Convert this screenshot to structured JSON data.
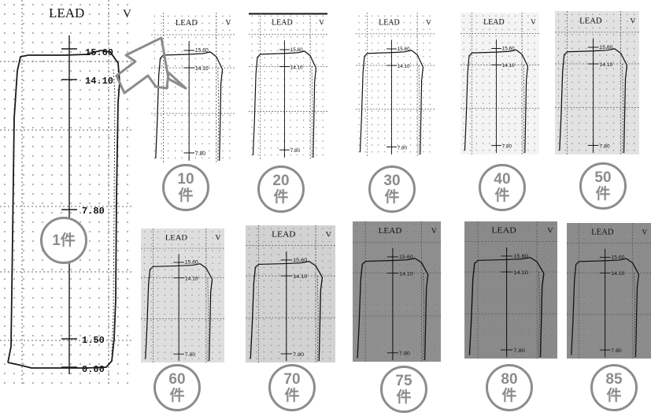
{
  "lead_label": "LEAD",
  "lead_suffix": "V",
  "ticks": {
    "top": "15.60",
    "upper": "14.10",
    "middle": "7.80",
    "low": "1.50",
    "bottom": "0.00"
  },
  "panels": [
    {
      "id": "1",
      "badge_number": "1",
      "badge_unit": "件"
    },
    {
      "id": "10",
      "badge_number": "10",
      "badge_unit": "件"
    },
    {
      "id": "20",
      "badge_number": "20",
      "badge_unit": "件"
    },
    {
      "id": "30",
      "badge_number": "30",
      "badge_unit": "件"
    },
    {
      "id": "40",
      "badge_number": "40",
      "badge_unit": "件"
    },
    {
      "id": "50",
      "badge_number": "50",
      "badge_unit": "件"
    },
    {
      "id": "60",
      "badge_number": "60",
      "badge_unit": "件"
    },
    {
      "id": "70",
      "badge_number": "70",
      "badge_unit": "件"
    },
    {
      "id": "75",
      "badge_number": "75",
      "badge_unit": "件"
    },
    {
      "id": "80",
      "badge_number": "80",
      "badge_unit": "件"
    },
    {
      "id": "85",
      "badge_number": "85",
      "badge_unit": "件"
    }
  ],
  "colors": {
    "badge_border": "#8c8c8c",
    "trace": "#1a1a1a",
    "arrow": "#8c8c8c"
  }
}
